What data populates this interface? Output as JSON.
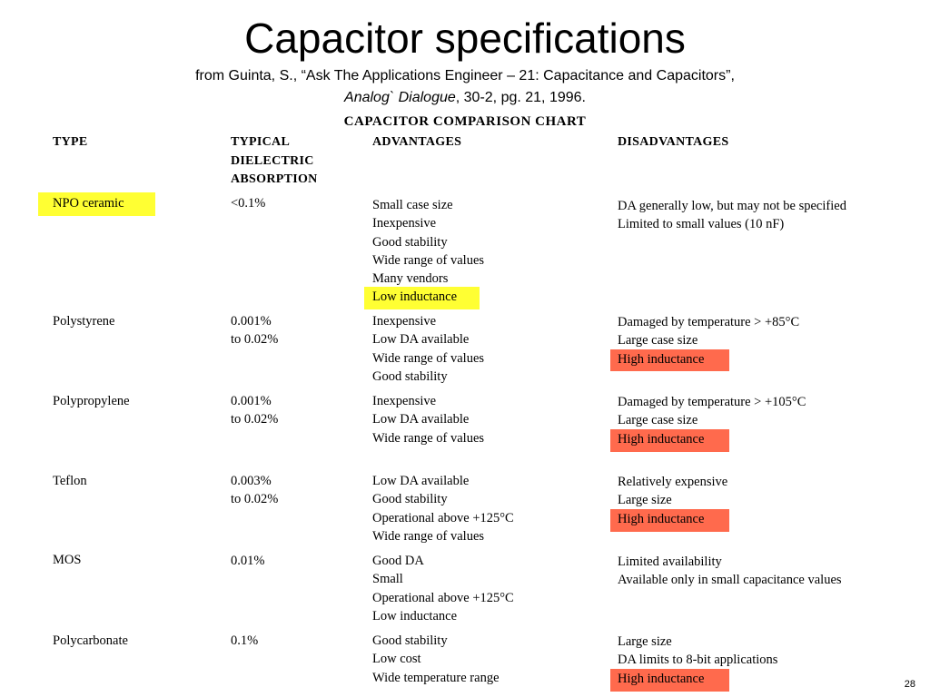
{
  "slide": {
    "title": "Capacitor specifications",
    "citation_line1": "from Guinta, S., “Ask The Applications Engineer – 21:  Capacitance and Capacitors”,",
    "citation_journal": "Analog` Dialogue",
    "citation_rest": ", 30-2, pg. 21, 1996.",
    "page_number": "28",
    "highlight_colors": {
      "yellow": "#ffff33",
      "red": "#ff6a4d"
    }
  },
  "chart": {
    "title": "CAPACITOR COMPARISON CHART",
    "headers": {
      "type": "TYPE",
      "da_line1": "TYPICAL",
      "da_line2": "DIELECTRIC",
      "da_line3": "ABSORPTION",
      "advantages": "ADVANTAGES",
      "disadvantages": "DISADVANTAGES"
    },
    "rows": [
      {
        "type": "NPO ceramic",
        "da": [
          "<0.1%"
        ],
        "advantages": [
          "Small case size",
          "Inexpensive",
          "Good stability",
          "Wide range of values",
          "Many vendors",
          "Low inductance"
        ],
        "disadvantages": [
          "DA generally low, but may not be specified",
          "Limited to small values (10 nF)"
        ]
      },
      {
        "type": "Polystyrene",
        "da": [
          "0.001%",
          "to 0.02%"
        ],
        "advantages": [
          "Inexpensive",
          "Low DA available",
          "Wide range of values",
          "Good stability"
        ],
        "disadvantages": [
          "Damaged by temperature > +85°C",
          "Large case size",
          "High inductance"
        ]
      },
      {
        "type": "Polypropylene",
        "da": [
          "0.001%",
          "to 0.02%"
        ],
        "advantages": [
          "Inexpensive",
          "Low DA available",
          "Wide range of values"
        ],
        "disadvantages": [
          "Damaged by temperature > +105°C",
          "Large case size",
          "High inductance"
        ]
      },
      {
        "type": "Teflon",
        "da": [
          "0.003%",
          "to 0.02%"
        ],
        "advantages": [
          "Low DA available",
          "Good stability",
          "Operational above +125°C",
          "Wide range of values"
        ],
        "disadvantages": [
          "Relatively expensive",
          "Large size",
          "High inductance"
        ]
      },
      {
        "type": "MOS",
        "da": [
          "0.01%"
        ],
        "advantages": [
          "Good DA",
          "Small",
          "Operational above +125°C",
          "Low inductance"
        ],
        "disadvantages": [
          "Limited availability",
          "Available only in small capacitance values"
        ]
      },
      {
        "type": "Polycarbonate",
        "da": [
          "0.1%"
        ],
        "advantages": [
          "Good stability",
          "Low cost",
          "Wide temperature range"
        ],
        "disadvantages": [
          "Large size",
          "DA limits to 8-bit applications",
          "High inductance"
        ]
      }
    ]
  }
}
